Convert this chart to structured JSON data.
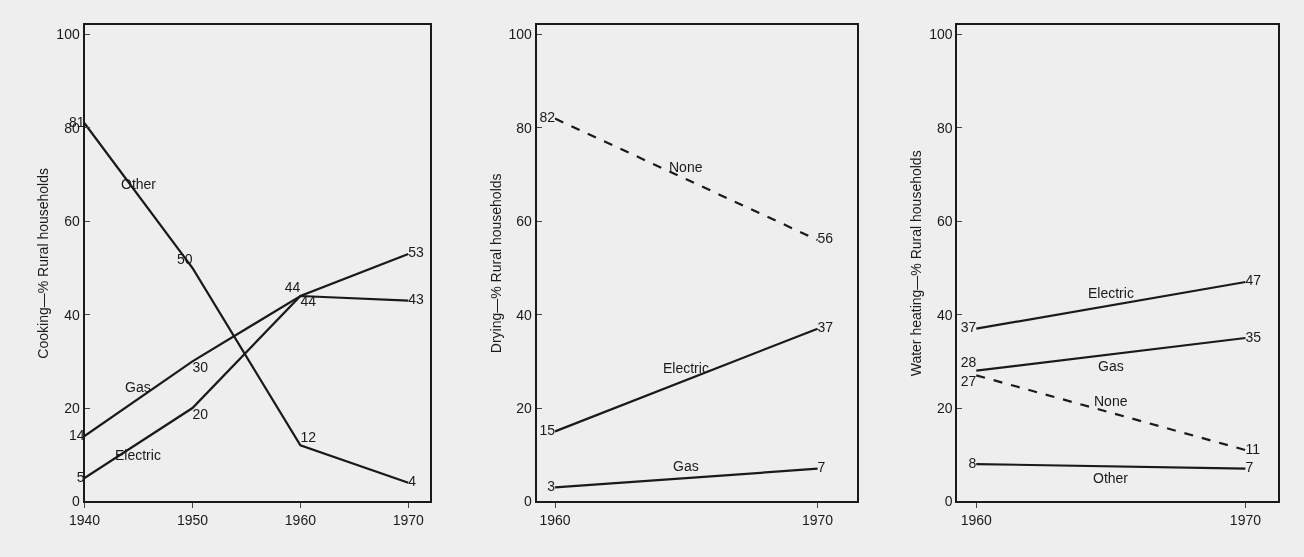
{
  "chart_data": [
    {
      "type": "line",
      "ylabel": "Cooking—% Rural households",
      "x": [
        1940,
        1950,
        1960,
        1970
      ],
      "xlim": [
        1940,
        1972
      ],
      "xticks": [
        1940,
        1950,
        1960,
        1970
      ],
      "ylim": [
        0,
        102
      ],
      "yticks": [
        0,
        20,
        40,
        60,
        80,
        100
      ],
      "legend": false,
      "data_labels": true,
      "series": [
        {
          "name": "Other",
          "color": "#1a1a1a",
          "values": [
            81,
            50,
            12,
            4
          ]
        },
        {
          "name": "Gas",
          "color": "#1a1a1a",
          "values": [
            14,
            30,
            44,
            43
          ]
        },
        {
          "name": "Electric",
          "color": "#1a1a1a",
          "values": [
            5,
            20,
            44,
            53
          ]
        }
      ]
    },
    {
      "type": "line",
      "ylabel": "Drying—% Rural households",
      "x": [
        1960,
        1970
      ],
      "xlim": [
        1959.3,
        1971.5
      ],
      "xticks": [
        1960,
        1970
      ],
      "ylim": [
        0,
        102
      ],
      "yticks": [
        0,
        20,
        40,
        60,
        80,
        100
      ],
      "legend": false,
      "data_labels": true,
      "series": [
        {
          "name": "None",
          "color": "#1a1a1a",
          "line_style": "dashed",
          "values": [
            82,
            56
          ]
        },
        {
          "name": "Electric",
          "color": "#1a1a1a",
          "values": [
            15,
            37
          ]
        },
        {
          "name": "Gas",
          "color": "#1a1a1a",
          "values": [
            3,
            7
          ]
        }
      ]
    },
    {
      "type": "line",
      "ylabel": "Water heating—% Rural households",
      "x": [
        1960,
        1970
      ],
      "xlim": [
        1959.3,
        1971.2
      ],
      "xticks": [
        1960,
        1970
      ],
      "ylim": [
        0,
        102
      ],
      "yticks": [
        0,
        20,
        40,
        60,
        80,
        100
      ],
      "legend": false,
      "data_labels": true,
      "series": [
        {
          "name": "Electric",
          "color": "#1a1a1a",
          "values": [
            37,
            47
          ]
        },
        {
          "name": "Gas",
          "color": "#1a1a1a",
          "values": [
            28,
            35
          ]
        },
        {
          "name": "None",
          "color": "#1a1a1a",
          "line_style": "dashed",
          "values": [
            27,
            11
          ]
        },
        {
          "name": "Other",
          "color": "#1a1a1a",
          "values": [
            8,
            7
          ]
        }
      ]
    }
  ]
}
